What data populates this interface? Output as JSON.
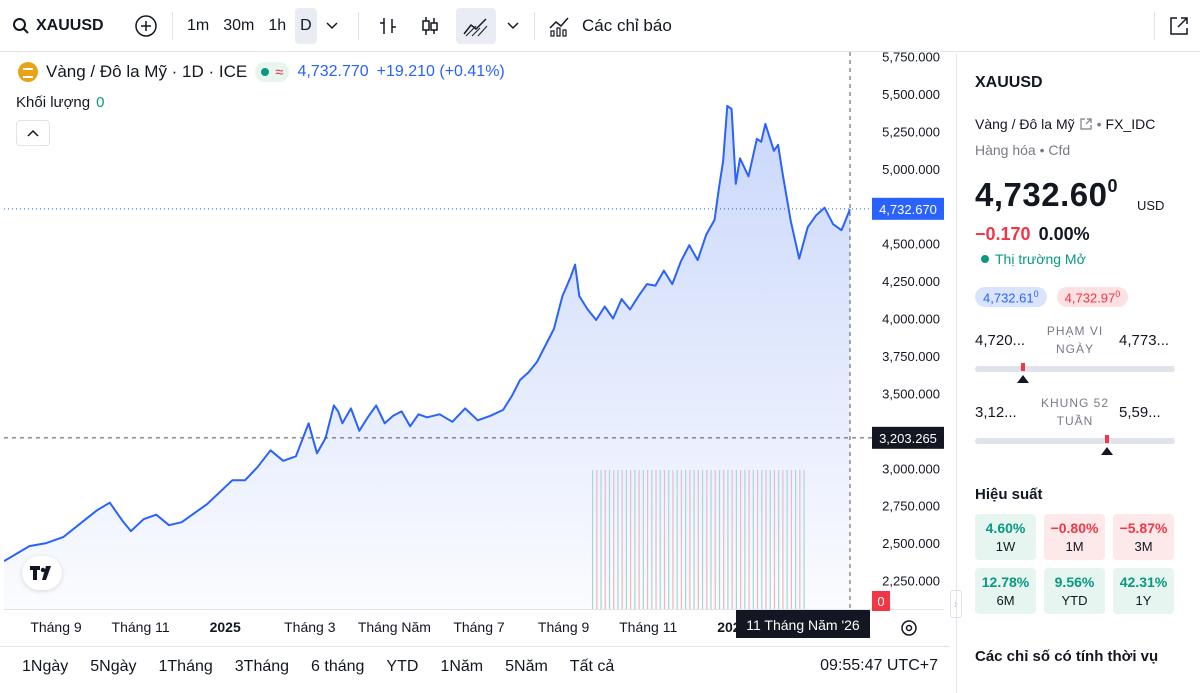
{
  "toolbar": {
    "symbol": "XAUUSD",
    "intervals": [
      "1m",
      "30m",
      "1h",
      "D"
    ],
    "active_interval": "D",
    "indicators_label": "Các chỉ báo"
  },
  "legend": {
    "title": "Vàng / Đô la Mỹ · 1D · ICE",
    "approx_symbol": "≈",
    "price": "4,732.770",
    "change": "+19.210 (+0.41%)",
    "volume_label": "Khối lượng",
    "volume_value": "0"
  },
  "chart_data": {
    "type": "area",
    "y_axis_ticks": [
      "5,750.000",
      "5,500.000",
      "5,250.000",
      "5,000.000",
      "4,750.000",
      "4,500.000",
      "4,250.000",
      "4,000.000",
      "3,750.000",
      "3,500.000",
      "3,250.000",
      "3,000.000",
      "2,750.000",
      "2,500.000",
      "2,250.000"
    ],
    "y_tick_values": [
      5750,
      5500,
      5250,
      5000,
      4750,
      4500,
      4250,
      4000,
      3750,
      3500,
      3250,
      3000,
      2750,
      2500,
      2250
    ],
    "x_axis_ticks": [
      "Tháng 9",
      "Tháng 11",
      "2025",
      "Tháng 3",
      "Tháng Năm",
      "Tháng 7",
      "Tháng 9",
      "Tháng 11",
      "2026"
    ],
    "x_tick_time": [
      0.0,
      2.0,
      4.0,
      6.0,
      8.0,
      10.0,
      12.0,
      14.0,
      16.0
    ],
    "x": [
      0,
      0.3,
      0.6,
      1.0,
      1.4,
      1.8,
      2.2,
      2.5,
      2.8,
      3.0,
      3.3,
      3.6,
      3.9,
      4.2,
      4.5,
      4.8,
      5.1,
      5.4,
      5.7,
      6.0,
      6.3,
      6.6,
      6.9,
      7.2,
      7.4,
      7.6,
      7.8,
      7.9,
      8.0,
      8.2,
      8.4,
      8.6,
      8.8,
      9.0,
      9.2,
      9.4,
      9.6,
      9.8,
      10.0,
      10.3,
      10.6,
      10.9,
      11.2,
      11.5,
      11.8,
      12.0,
      12.2,
      12.4,
      12.6,
      12.8,
      13.0,
      13.2,
      13.4,
      13.5,
      13.6,
      13.8,
      14.0,
      14.2,
      14.4,
      14.6,
      14.8,
      15.0,
      15.2,
      15.4,
      15.6,
      15.8,
      16.0,
      16.2,
      16.4,
      16.6,
      16.8,
      16.9,
      17.0,
      17.1,
      17.2,
      17.3,
      17.4,
      17.6,
      17.8,
      17.9,
      18.0,
      18.2,
      18.3,
      18.4,
      18.6,
      18.8,
      19.0,
      19.2,
      19.4,
      19.6,
      19.8,
      20.0
    ],
    "values": [
      2380,
      2430,
      2480,
      2500,
      2540,
      2630,
      2720,
      2770,
      2650,
      2580,
      2660,
      2690,
      2620,
      2640,
      2700,
      2760,
      2840,
      2920,
      2920,
      3010,
      3120,
      3050,
      3080,
      3300,
      3100,
      3200,
      3420,
      3380,
      3300,
      3400,
      3250,
      3340,
      3420,
      3300,
      3350,
      3380,
      3280,
      3360,
      3340,
      3360,
      3310,
      3400,
      3320,
      3350,
      3390,
      3480,
      3590,
      3640,
      3710,
      3820,
      3930,
      4150,
      4280,
      4360,
      4150,
      4060,
      3990,
      4080,
      4000,
      4130,
      4060,
      4150,
      4230,
      4220,
      4320,
      4230,
      4380,
      4490,
      4390,
      4560,
      4660,
      4870,
      5050,
      5420,
      5400,
      4900,
      5070,
      4950,
      5200,
      5180,
      5300,
      5120,
      5160,
      4980,
      4650,
      4400,
      4610,
      4690,
      4740,
      4630,
      4590,
      4730
    ],
    "last_price_label": "4,732.670",
    "last_price": 4732.67,
    "crosshair_label": "3,203.265",
    "crosshair_price": 3203.265,
    "crosshair_date_label": "11 Tháng Năm '26",
    "crosshair_time": 20.0,
    "volume_badge": "0",
    "ylim": [
      2060,
      5780
    ],
    "xlim": [
      0,
      20.0
    ]
  },
  "date_ranges": [
    "1Ngày",
    "5Ngày",
    "1Tháng",
    "3Tháng",
    "6 tháng",
    "YTD",
    "1Năm",
    "5Năm",
    "Tất cả"
  ],
  "clock": "09:55:47 UTC+7",
  "panel": {
    "symbol": "XAUUSD",
    "description": "Vàng / Đô la Mỹ",
    "exchange": "FX_IDC",
    "category": "Hàng hóa",
    "type": "Cfd",
    "price_main": "4,732.60",
    "price_sup": "0",
    "currency": "USD",
    "change": "−0.170",
    "change_pct": "0.00%",
    "market_status": "Thị trường Mở",
    "bid": "4,732.61",
    "bid_sup": "0",
    "ask": "4,732.97",
    "ask_sup": "0",
    "day_low": "4,720...",
    "day_caption_1": "PHẠM VI",
    "day_caption_2": "NGÀY",
    "day_high": "4,773...",
    "week52_low": "3,12...",
    "week52_caption_1": "KHUNG 52",
    "week52_caption_2": "TUẦN",
    "week52_high": "5,59...",
    "day_position": 0.24,
    "week52_position": 0.66,
    "performance_title": "Hiệu suất",
    "performance": [
      {
        "value": "4.60%",
        "label": "1W",
        "sign": "pos"
      },
      {
        "value": "−0.80%",
        "label": "1M",
        "sign": "neg"
      },
      {
        "value": "−5.87%",
        "label": "3M",
        "sign": "neg"
      },
      {
        "value": "12.78%",
        "label": "6M",
        "sign": "pos"
      },
      {
        "value": "9.56%",
        "label": "YTD",
        "sign": "pos"
      },
      {
        "value": "42.31%",
        "label": "1Y",
        "sign": "pos"
      }
    ],
    "seasonal_title": "Các chỉ số có tính thời vụ"
  },
  "colors": {
    "line": "#2962ff",
    "area_top": "#c7d5fb",
    "up": "#089981",
    "down": "#f23645",
    "crosshair_bg": "#131722",
    "last_price_bg": "#2962ff"
  }
}
